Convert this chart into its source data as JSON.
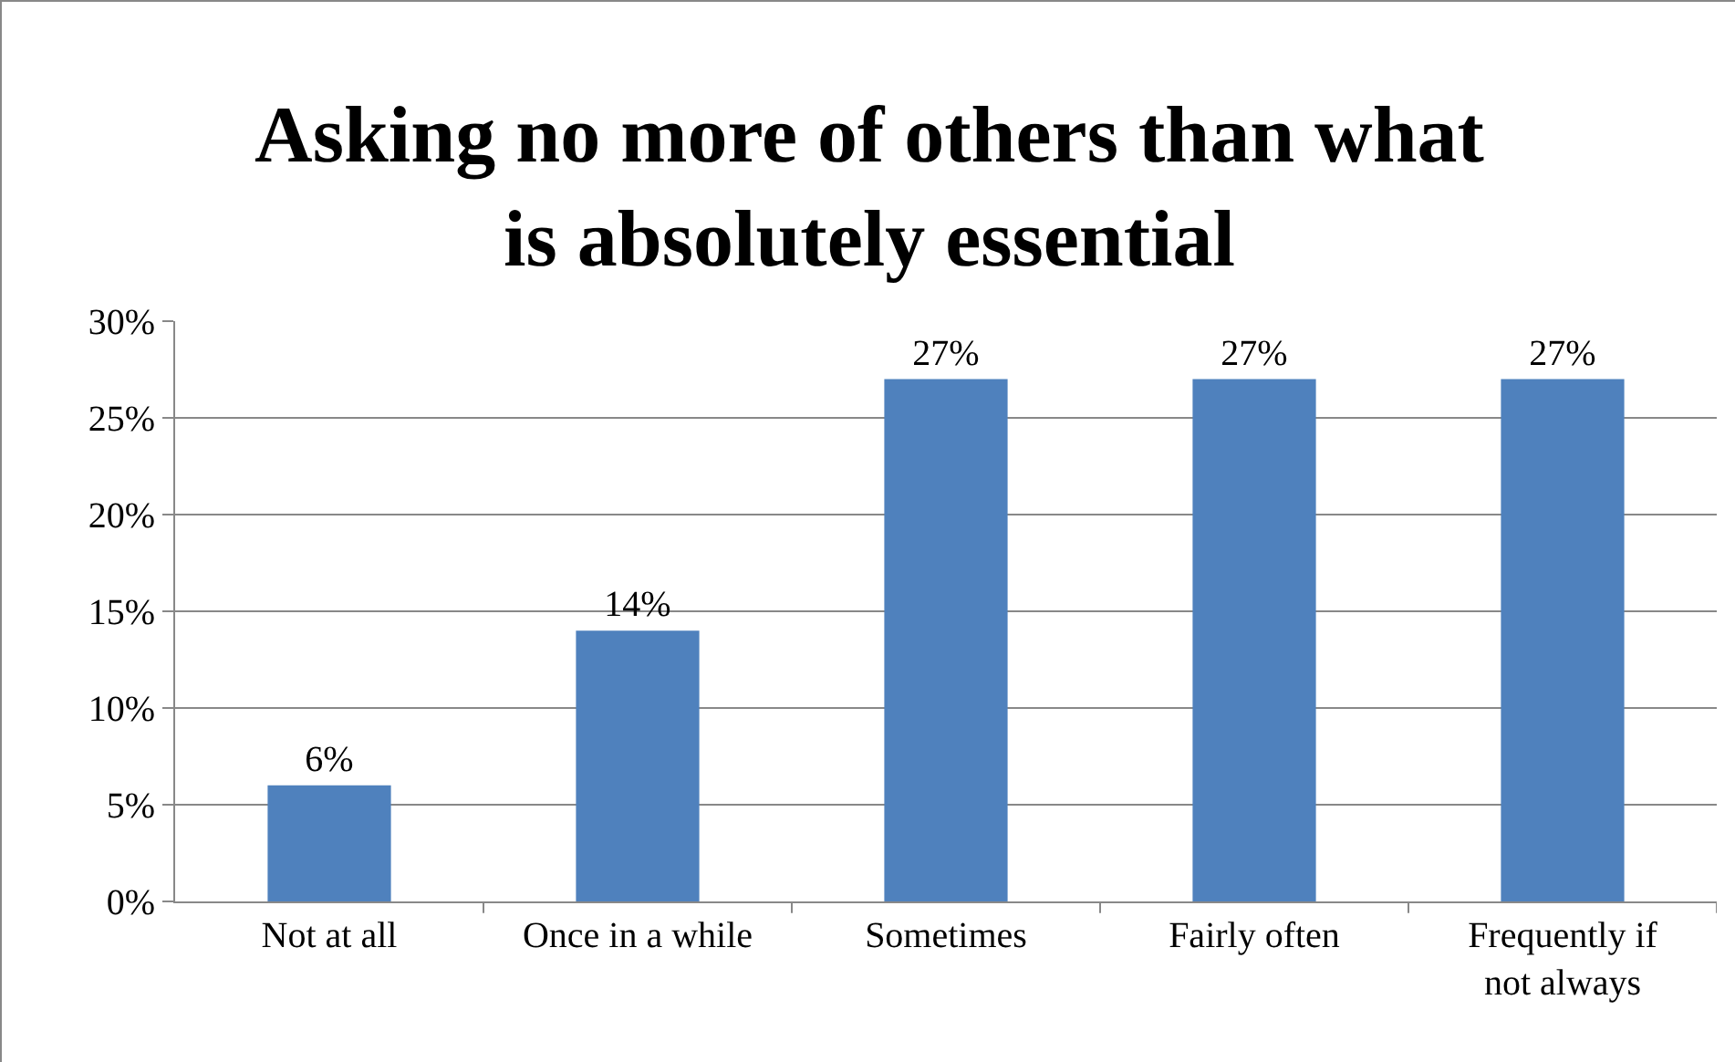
{
  "chart_data": {
    "type": "bar",
    "title": "Asking no more of others than what is absolutely essential",
    "categories": [
      "Not at all",
      "Once in a while",
      "Sometimes",
      "Fairly often",
      "Frequently if not always"
    ],
    "values": [
      6,
      14,
      27,
      27,
      27
    ],
    "value_labels": [
      "6%",
      "14%",
      "27%",
      "27%",
      "27%"
    ],
    "color": "#4f81bd",
    "ylim": [
      0,
      30
    ],
    "yticks": [
      {
        "value": 0,
        "label": "0%"
      },
      {
        "value": 5,
        "label": "5%"
      },
      {
        "value": 10,
        "label": "10%"
      },
      {
        "value": 15,
        "label": "15%"
      },
      {
        "value": 20,
        "label": "20%"
      },
      {
        "value": 25,
        "label": "25%"
      },
      {
        "value": 30,
        "label": "30%"
      }
    ],
    "grid": "y"
  }
}
